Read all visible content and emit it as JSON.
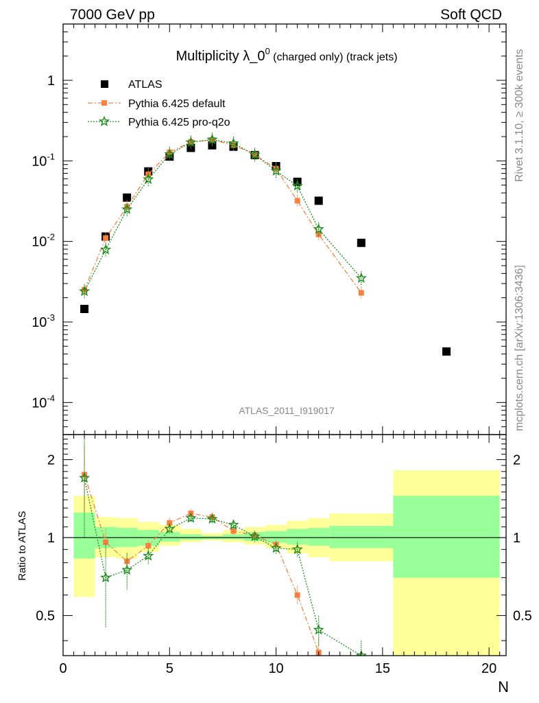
{
  "header": {
    "left": "7000 GeV pp",
    "right": "Soft QCD"
  },
  "side": {
    "top": "Rivet 3.1.10, ≥ 300k events",
    "bottom": "mcplots.cern.ch [arXiv:1306:3436]"
  },
  "chart_data": [
    {
      "type": "scatter",
      "title": {
        "main": "Multiplicity λ_0",
        "sup": "0",
        "suffix": " (charged only) (track jets)"
      },
      "watermark": "ATLAS_2011_I919017",
      "xlim": [
        0,
        20.8
      ],
      "ylim": [
        4e-05,
        5
      ],
      "yscale": "log",
      "y_ticks": [
        {
          "value": 0.0001,
          "base": "10",
          "exp": "-4"
        },
        {
          "value": 0.001,
          "base": "10",
          "exp": "-3"
        },
        {
          "value": 0.01,
          "base": "10",
          "exp": "-2"
        },
        {
          "value": 0.1,
          "base": "10",
          "exp": "-1"
        },
        {
          "value": 1,
          "base": "1",
          "exp": ""
        }
      ],
      "legend": {
        "placement": "top-left",
        "entries": [
          "ATLAS",
          "Pythia 6.425 default",
          "Pythia 6.425 pro-q2o"
        ]
      },
      "series": [
        {
          "name": "ATLAS",
          "color": "#000000",
          "marker": "square",
          "x": [
            1,
            2,
            3,
            4,
            5,
            6,
            7,
            8,
            9,
            10,
            11,
            12,
            14,
            18
          ],
          "y": [
            0.00145,
            0.0115,
            0.035,
            0.074,
            0.113,
            0.145,
            0.156,
            0.15,
            0.118,
            0.086,
            0.055,
            0.032,
            0.0096,
            0.00043
          ]
        },
        {
          "name": "Pythia 6.425 default",
          "color": "#f58040",
          "marker": "square-small",
          "line": "dashdot",
          "x": [
            1,
            2,
            3,
            4,
            5,
            6,
            7,
            8,
            9,
            10,
            11,
            12,
            14
          ],
          "y": [
            0.0025,
            0.011,
            0.027,
            0.068,
            0.128,
            0.172,
            0.182,
            0.157,
            0.12,
            0.08,
            0.032,
            0.0122,
            0.0023
          ]
        },
        {
          "name": "Pythia 6.425 pro-q2o",
          "color": "#1a8a1a",
          "marker": "star",
          "line": "dotted",
          "x": [
            1,
            2,
            3,
            4,
            5,
            6,
            7,
            8,
            9,
            10,
            11,
            12,
            14
          ],
          "y": [
            0.0024,
            0.0079,
            0.025,
            0.059,
            0.121,
            0.17,
            0.184,
            0.165,
            0.119,
            0.075,
            0.049,
            0.0142,
            0.0035
          ]
        }
      ]
    },
    {
      "type": "scatter",
      "ylabel": "Ratio to ATLAS",
      "xlabel": "N",
      "xlim": [
        0,
        20.8
      ],
      "ylim": [
        0.35,
        2.5
      ],
      "yscale": "log",
      "x_ticks": [
        0,
        5,
        10,
        15,
        20
      ],
      "y_ticks": [
        0.5,
        1,
        2
      ],
      "bands": [
        {
          "x0": 0.5,
          "x1": 1.5,
          "y_yellow": [
            0.59,
            1.45
          ],
          "y_green": [
            0.83,
            1.25
          ]
        },
        {
          "x0": 1.5,
          "x1": 2.5,
          "y_yellow": [
            0.84,
            1.2
          ],
          "y_green": [
            0.91,
            1.1
          ]
        },
        {
          "x0": 2.5,
          "x1": 3.5,
          "y_yellow": [
            0.83,
            1.19
          ],
          "y_green": [
            0.92,
            1.09
          ]
        },
        {
          "x0": 3.5,
          "x1": 4.5,
          "y_yellow": [
            0.88,
            1.15
          ],
          "y_green": [
            0.93,
            1.07
          ]
        },
        {
          "x0": 4.5,
          "x1": 5.5,
          "y_yellow": [
            0.93,
            1.12
          ],
          "y_green": [
            0.965,
            1.05
          ]
        },
        {
          "x0": 5.5,
          "x1": 6.5,
          "y_yellow": [
            0.96,
            1.08
          ],
          "y_green": [
            0.98,
            1.03
          ]
        },
        {
          "x0": 6.5,
          "x1": 7.5,
          "y_yellow": [
            0.975,
            1.04
          ],
          "y_green": [
            0.985,
            1.015
          ]
        },
        {
          "x0": 7.5,
          "x1": 8.5,
          "y_yellow": [
            0.96,
            1.07
          ],
          "y_green": [
            0.985,
            1.03
          ]
        },
        {
          "x0": 8.5,
          "x1": 9.5,
          "y_yellow": [
            0.94,
            1.1
          ],
          "y_green": [
            0.97,
            1.05
          ]
        },
        {
          "x0": 9.5,
          "x1": 10.5,
          "y_yellow": [
            0.91,
            1.12
          ],
          "y_green": [
            0.955,
            1.06
          ]
        },
        {
          "x0": 10.5,
          "x1": 11.5,
          "y_yellow": [
            0.87,
            1.16
          ],
          "y_green": [
            0.94,
            1.08
          ]
        },
        {
          "x0": 11.5,
          "x1": 12.5,
          "y_yellow": [
            0.84,
            1.19
          ],
          "y_green": [
            0.93,
            1.09
          ]
        },
        {
          "x0": 12.5,
          "x1": 15.5,
          "y_yellow": [
            0.81,
            1.24
          ],
          "y_green": [
            0.91,
            1.11
          ]
        },
        {
          "x0": 15.5,
          "x1": 20.5,
          "y_yellow": [
            0.3,
            1.82
          ],
          "y_green": [
            0.7,
            1.45
          ]
        }
      ],
      "series": [
        {
          "name": "Pythia 6.425 default",
          "color": "#f58040",
          "x": [
            1,
            2,
            3,
            4,
            5,
            6,
            7,
            8,
            9,
            10,
            11,
            12
          ],
          "y": [
            1.75,
            0.96,
            0.81,
            0.93,
            1.14,
            1.24,
            1.2,
            1.06,
            1.02,
            0.94,
            0.6,
            0.36
          ],
          "err": [
            0.5,
            0.12,
            0.06,
            0.05,
            0.05,
            0.05,
            0.05,
            0.04,
            0.04,
            0.04,
            0.05,
            0.05
          ]
        },
        {
          "name": "Pythia 6.425 pro-q2o",
          "color": "#1a8a1a",
          "x": [
            1,
            2,
            3,
            4,
            5,
            6,
            7,
            8,
            9,
            10,
            11,
            12,
            14
          ],
          "y": [
            1.7,
            0.7,
            0.75,
            0.85,
            1.08,
            1.19,
            1.18,
            1.12,
            1.01,
            0.91,
            0.9,
            0.44,
            0.35
          ],
          "err": [
            0.7,
            0.25,
            0.12,
            0.06,
            0.05,
            0.04,
            0.04,
            0.04,
            0.05,
            0.05,
            0.06,
            0.06,
            0.05
          ]
        }
      ]
    }
  ]
}
